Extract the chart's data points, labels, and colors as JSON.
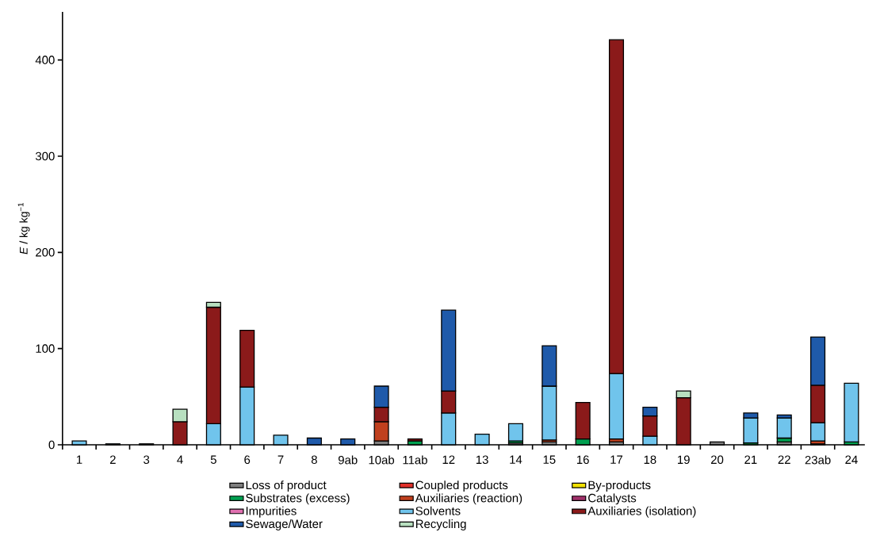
{
  "chart_data": {
    "type": "bar",
    "stacked": true,
    "ylabel": "*E* / kg kg$^{−1}$",
    "categories": [
      "1",
      "2",
      "3",
      "4",
      "5",
      "6",
      "7",
      "8",
      "9ab",
      "10ab",
      "11ab",
      "12",
      "13",
      "14",
      "15",
      "16",
      "17",
      "18",
      "19",
      "20",
      "21",
      "22",
      "23ab",
      "24"
    ],
    "series": [
      {
        "name": "Loss of product",
        "color": "#7f7f7f",
        "values": [
          null,
          null,
          1,
          null,
          null,
          null,
          null,
          null,
          null,
          4,
          null,
          null,
          null,
          2,
          3,
          null,
          3,
          null,
          null,
          3,
          null,
          3,
          1,
          null
        ]
      },
      {
        "name": "Coupled products",
        "color": "#e0302a",
        "values": [
          null,
          null,
          null,
          null,
          null,
          null,
          null,
          null,
          null,
          null,
          null,
          null,
          null,
          null,
          null,
          null,
          null,
          null,
          null,
          null,
          null,
          null,
          null,
          null
        ]
      },
      {
        "name": "By-products",
        "color": "#f0e000",
        "values": [
          null,
          null,
          null,
          null,
          null,
          null,
          null,
          null,
          null,
          null,
          null,
          null,
          null,
          null,
          null,
          null,
          null,
          null,
          null,
          null,
          null,
          null,
          null,
          null
        ]
      },
      {
        "name": "Substrates (excess)",
        "color": "#00a050",
        "values": [
          null,
          null,
          null,
          null,
          null,
          null,
          null,
          null,
          null,
          null,
          4,
          null,
          null,
          2,
          null,
          6,
          null,
          null,
          null,
          null,
          2,
          4,
          null,
          3
        ]
      },
      {
        "name": "Auxiliaries (reaction)",
        "color": "#c0401e",
        "values": [
          null,
          null,
          null,
          null,
          null,
          null,
          null,
          null,
          null,
          20,
          null,
          null,
          null,
          null,
          2,
          null,
          3,
          null,
          null,
          null,
          null,
          null,
          3,
          null
        ]
      },
      {
        "name": "Catalysts",
        "color": "#a0306a",
        "values": [
          null,
          null,
          null,
          null,
          null,
          null,
          null,
          null,
          null,
          null,
          null,
          null,
          null,
          null,
          null,
          null,
          null,
          null,
          null,
          null,
          null,
          null,
          null,
          null
        ]
      },
      {
        "name": "Impurities",
        "color": "#e070b0",
        "values": [
          null,
          null,
          null,
          null,
          null,
          null,
          null,
          null,
          null,
          null,
          null,
          null,
          null,
          null,
          null,
          null,
          null,
          null,
          null,
          null,
          null,
          null,
          null,
          null
        ]
      },
      {
        "name": "Solvents",
        "color": "#70c4ec",
        "values": [
          4,
          1,
          null,
          null,
          22,
          60,
          10,
          null,
          null,
          null,
          null,
          33,
          11,
          18,
          56,
          null,
          68,
          9,
          null,
          null,
          26,
          21,
          19,
          61
        ]
      },
      {
        "name": "Auxiliaries (isolation)",
        "color": "#8b1a1a",
        "values": [
          null,
          null,
          null,
          24,
          121,
          59,
          null,
          null,
          null,
          15,
          2,
          23,
          null,
          null,
          null,
          38,
          347,
          21,
          49,
          null,
          null,
          null,
          39,
          null
        ]
      },
      {
        "name": "Sewage/Water",
        "color": "#1f5aaa",
        "values": [
          null,
          null,
          null,
          null,
          null,
          null,
          null,
          7,
          6,
          22,
          null,
          84,
          null,
          null,
          42,
          null,
          null,
          9,
          null,
          null,
          5,
          3,
          50,
          null
        ]
      },
      {
        "name": "Recycling",
        "color": "#b8e0c0",
        "values": [
          null,
          null,
          null,
          13,
          5,
          null,
          null,
          null,
          null,
          null,
          null,
          null,
          null,
          null,
          null,
          null,
          null,
          null,
          7,
          null,
          null,
          null,
          null,
          null
        ]
      }
    ],
    "ylim": [
      0,
      450
    ],
    "yticks": [
      0,
      100,
      200,
      300,
      400
    ],
    "legend": "bottom"
  }
}
